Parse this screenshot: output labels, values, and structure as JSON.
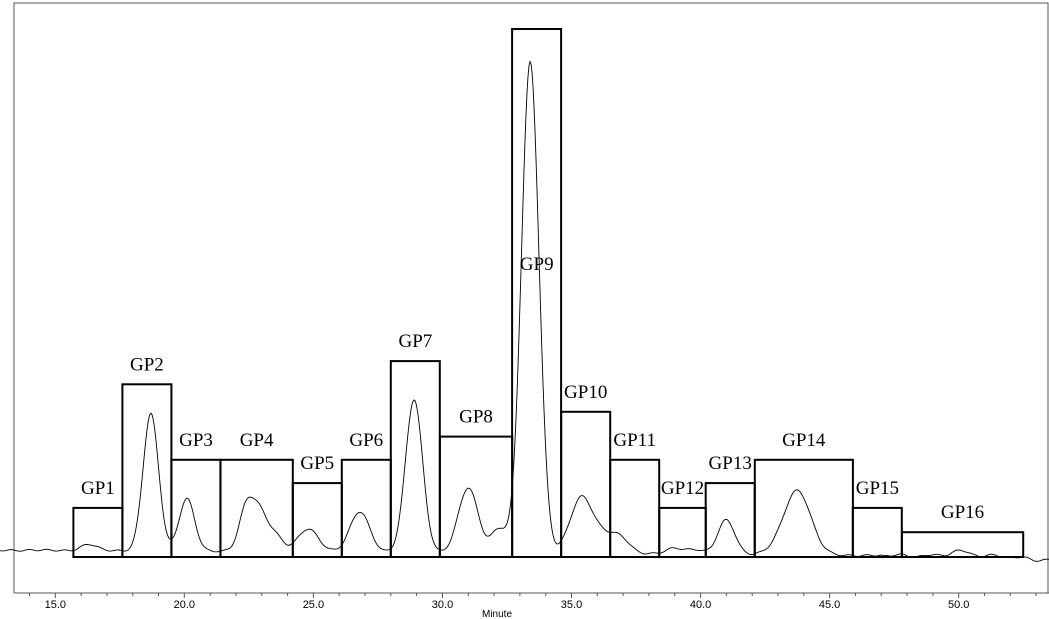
{
  "chart_data": {
    "type": "bar",
    "xlabel": "Minute",
    "ylabel": "",
    "xlim": [
      13.4,
      53.5
    ],
    "ylim": [
      0,
      100
    ],
    "x_ticks": [
      "15.0",
      "20.0",
      "25.0",
      "30.0",
      "35.0",
      "40.0",
      "45.0",
      "50.0"
    ],
    "grid": false,
    "bar_color": "#000000",
    "trace_color": "#000000",
    "groups": [
      {
        "label": "GP1",
        "x_start": 15.7,
        "x_end": 17.6,
        "value": 9.3
      },
      {
        "label": "GP2",
        "x_start": 17.6,
        "x_end": 19.5,
        "value": 32.7
      },
      {
        "label": "GP3",
        "x_start": 19.5,
        "x_end": 21.4,
        "value": 18.4
      },
      {
        "label": "GP4",
        "x_start": 21.4,
        "x_end": 24.2,
        "value": 18.4
      },
      {
        "label": "GP5",
        "x_start": 24.2,
        "x_end": 26.1,
        "value": 14.0
      },
      {
        "label": "GP6",
        "x_start": 26.1,
        "x_end": 28.0,
        "value": 18.4
      },
      {
        "label": "GP7",
        "x_start": 28.0,
        "x_end": 29.9,
        "value": 37.1
      },
      {
        "label": "GP8",
        "x_start": 29.9,
        "x_end": 32.7,
        "value": 22.8
      },
      {
        "label": "GP9",
        "x_start": 32.7,
        "x_end": 34.6,
        "value": 100.0
      },
      {
        "label": "GP10",
        "x_start": 34.6,
        "x_end": 36.5,
        "value": 27.5
      },
      {
        "label": "GP11",
        "x_start": 36.5,
        "x_end": 38.4,
        "value": 18.4
      },
      {
        "label": "GP12",
        "x_start": 38.4,
        "x_end": 40.2,
        "value": 9.3
      },
      {
        "label": "GP13",
        "x_start": 40.2,
        "x_end": 42.1,
        "value": 14.0
      },
      {
        "label": "GP14",
        "x_start": 42.1,
        "x_end": 45.9,
        "value": 18.4
      },
      {
        "label": "GP15",
        "x_start": 45.9,
        "x_end": 47.8,
        "value": 9.3
      },
      {
        "label": "GP16",
        "x_start": 47.8,
        "x_end": 52.5,
        "value": 4.7
      }
    ],
    "chromatogram_peaks": [
      {
        "x": 16.3,
        "height": 1.2,
        "width": 0.3
      },
      {
        "x": 18.7,
        "height": 26.0,
        "width": 0.3
      },
      {
        "x": 20.1,
        "height": 10.0,
        "width": 0.3
      },
      {
        "x": 22.4,
        "height": 8.0,
        "width": 0.28
      },
      {
        "x": 22.9,
        "height": 7.0,
        "width": 0.3
      },
      {
        "x": 23.5,
        "height": 3.0,
        "width": 0.3
      },
      {
        "x": 24.8,
        "height": 4.4,
        "width": 0.4
      },
      {
        "x": 26.8,
        "height": 7.7,
        "width": 0.38
      },
      {
        "x": 28.9,
        "height": 29.0,
        "width": 0.33
      },
      {
        "x": 31.0,
        "height": 12.3,
        "width": 0.38
      },
      {
        "x": 32.2,
        "height": 4.6,
        "width": 0.3
      },
      {
        "x": 33.4,
        "height": 93.0,
        "width": 0.34
      },
      {
        "x": 35.4,
        "height": 10.7,
        "width": 0.45
      },
      {
        "x": 36.3,
        "height": 2.5,
        "width": 0.35
      },
      {
        "x": 36.9,
        "height": 3.0,
        "width": 0.35
      },
      {
        "x": 39.0,
        "height": 1.2,
        "width": 0.35
      },
      {
        "x": 39.8,
        "height": 0.8,
        "width": 0.3
      },
      {
        "x": 41.0,
        "height": 6.6,
        "width": 0.33
      },
      {
        "x": 43.8,
        "height": 11.0,
        "width": 0.5
      },
      {
        "x": 43.3,
        "height": 2.0,
        "width": 0.5
      },
      {
        "x": 50.1,
        "height": 0.9,
        "width": 0.4
      }
    ]
  }
}
